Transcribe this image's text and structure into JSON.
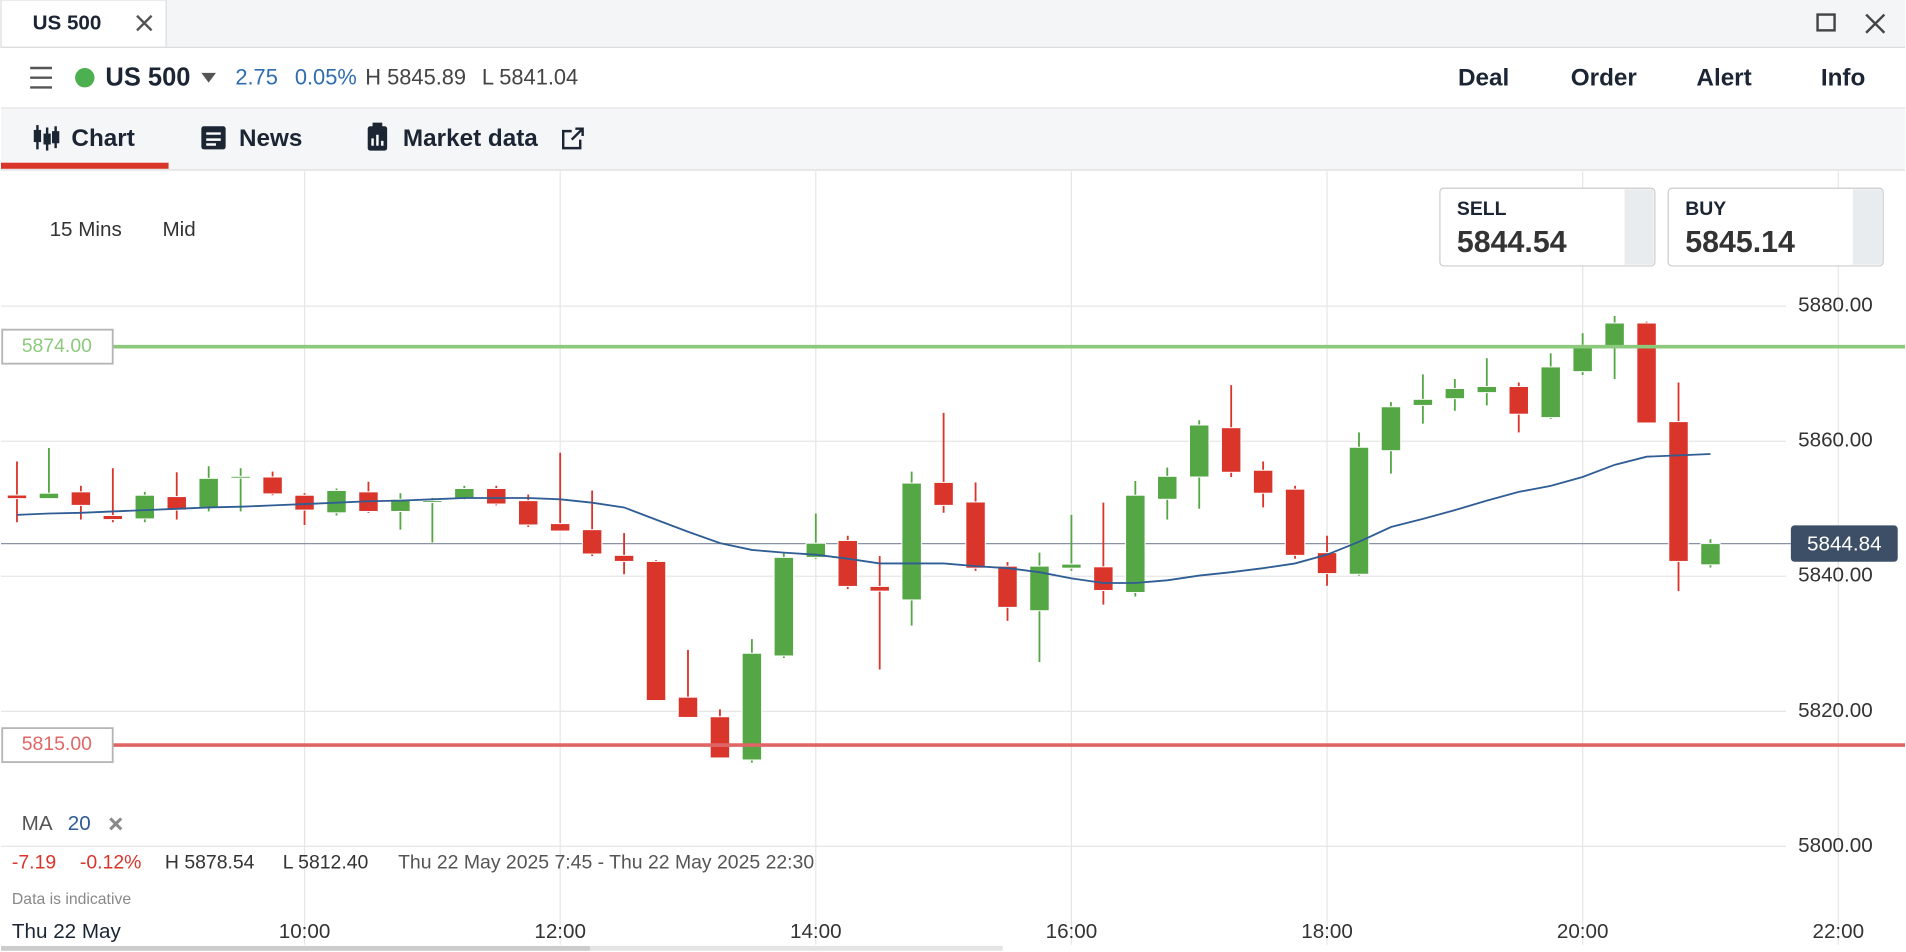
{
  "window": {
    "tab": "US 500"
  },
  "header": {
    "instrument": "US 500",
    "change": "2.75",
    "change_pct": "0.05%",
    "high": "H 5845.89",
    "low": "L 5841.04",
    "actions": [
      "Deal",
      "Order",
      "Alert",
      "Info"
    ]
  },
  "tabs": [
    "Chart",
    "News",
    "Market data"
  ],
  "toolbar": {
    "interval": "15 Mins",
    "price_type": "Mid"
  },
  "quote": {
    "sell_label": "SELL",
    "sell": "5844.54",
    "buy_label": "BUY",
    "buy": "5845.14"
  },
  "footer": {
    "change": "-7.19",
    "change_pct": "-0.12%",
    "high": "H 5878.54",
    "low": "L 5812.40",
    "range": "Thu 22 May 2025 7:45 - Thu 22 May 2025 22:30",
    "note": "Data is indicative"
  },
  "chart_data": {
    "type": "candlestick",
    "date_label": "Thu 22 May",
    "x": [
      7.75,
      8,
      8.25,
      8.5,
      8.75,
      9,
      9.25,
      9.5,
      9.75,
      10,
      10.25,
      10.5,
      10.75,
      11,
      11.25,
      11.5,
      11.75,
      12,
      12.25,
      12.5,
      12.75,
      13,
      13.25,
      13.5,
      13.75,
      14,
      14.25,
      14.5,
      14.75,
      15,
      15.25,
      15.5,
      15.75,
      16,
      16.25,
      16.5,
      16.75,
      17,
      17.25,
      17.5,
      17.75,
      18,
      18.25,
      18.5,
      18.75,
      19,
      19.25,
      19.5,
      19.75,
      20,
      20.25,
      20.5,
      20.75,
      21
    ],
    "open": [
      5852.03,
      5851.5,
      5852.5,
      5849,
      5848.5,
      5851.8,
      5850.2,
      5854.6,
      5854.7,
      5852,
      5849.4,
      5852.5,
      5849.6,
      5851.0,
      5851.6,
      5853,
      5851.2,
      5847.8,
      5846.9,
      5843.1,
      5842.2,
      5822.1,
      5819.2,
      5812.8,
      5828.2,
      5842.8,
      5845.3,
      5838.5,
      5836.5,
      5853.9,
      5851,
      5841.5,
      5834.9,
      5841.2,
      5841.4,
      5837.6,
      5851.4,
      5854.7,
      5862,
      5855.7,
      5852.9,
      5843.5,
      5840.3,
      5858.6,
      5865.3,
      5866.3,
      5867.2,
      5868.1,
      5863.5,
      5870.3,
      5874,
      5877.5,
      5862.9,
      5841.7
    ],
    "high": [
      5857,
      5859,
      5853.4,
      5856,
      5852.5,
      5855.4,
      5856.3,
      5856,
      5855.5,
      5852.3,
      5853,
      5854,
      5852.3,
      5851.6,
      5853.4,
      5853.4,
      5852.1,
      5858.3,
      5852.7,
      5846.4,
      5842.4,
      5829.1,
      5820.3,
      5830.7,
      5843.5,
      5849.3,
      5846,
      5843,
      5855.5,
      5864.2,
      5853.9,
      5842.1,
      5843.5,
      5849.1,
      5850.9,
      5854.1,
      5856.1,
      5863.1,
      5868.3,
      5857,
      5853.4,
      5846,
      5861.3,
      5865.8,
      5869.9,
      5869.2,
      5872.3,
      5868.7,
      5873,
      5876,
      5878.54,
      5877.7,
      5868.7,
      5845.5
    ],
    "low": [
      5848,
      5851.5,
      5848.4,
      5848,
      5848,
      5848.4,
      5849.6,
      5849.6,
      5852,
      5847.6,
      5849,
      5849.4,
      5846.9,
      5845,
      5851.4,
      5850.5,
      5847.3,
      5846.7,
      5843,
      5840.3,
      5821.6,
      5819.1,
      5813.1,
      5812.4,
      5827.9,
      5842.6,
      5838.1,
      5826.2,
      5832.7,
      5849.4,
      5840.8,
      5833.4,
      5827.3,
      5840.8,
      5835.8,
      5837,
      5848.4,
      5850,
      5854.7,
      5850.2,
      5842.6,
      5838.6,
      5840.1,
      5855.2,
      5862.6,
      5864.5,
      5865.3,
      5861.3,
      5863.3,
      5869.8,
      5869.2,
      5862.7,
      5837.8,
      5841.3
    ],
    "close": [
      5851.5,
      5852.3,
      5850.5,
      5848.4,
      5852,
      5849.8,
      5854.5,
      5854.8,
      5852.2,
      5849.8,
      5852.7,
      5849.6,
      5851.4,
      5851.2,
      5853,
      5850.7,
      5847.6,
      5846.7,
      5843.3,
      5842.2,
      5821.6,
      5819.1,
      5813.1,
      5828.6,
      5842.8,
      5844.9,
      5838.5,
      5837.8,
      5853.8,
      5850.5,
      5841.2,
      5835.4,
      5841.5,
      5841.8,
      5837.9,
      5852,
      5854.8,
      5862.4,
      5855.4,
      5852.3,
      5843.1,
      5840.4,
      5859.1,
      5865.1,
      5866.2,
      5867.8,
      5868.1,
      5864,
      5871,
      5874.2,
      5877.5,
      5862.7,
      5842.2,
      5844.84
    ],
    "up_color": "#55a644",
    "down_color": "#d9352b",
    "indicator": {
      "name": "MA",
      "period": 20,
      "color": "#2f5d94",
      "values": [
        5849.1,
        5849.3,
        5849.4,
        5849.6,
        5849.8,
        5850.0,
        5850.2,
        5850.3,
        5850.5,
        5850.7,
        5850.9,
        5851.1,
        5851.2,
        5851.4,
        5851.6,
        5851.6,
        5851.6,
        5851.4,
        5850.9,
        5850.2,
        5848.4,
        5846.6,
        5844.9,
        5843.9,
        5843.5,
        5843.2,
        5842.6,
        5841.9,
        5841.9,
        5841.9,
        5841.5,
        5841.2,
        5840.6,
        5839.7,
        5839.0,
        5839.0,
        5839.4,
        5840.1,
        5840.6,
        5841.2,
        5841.9,
        5843.2,
        5845.1,
        5847.3,
        5848.5,
        5849.8,
        5851.2,
        5852.5,
        5853.4,
        5854.7,
        5856.5,
        5857.7,
        5857.9,
        5858.1
      ]
    },
    "levels": [
      {
        "value": 5874,
        "label": "5874.00",
        "color": "#8cc97c"
      },
      {
        "value": 5815,
        "label": "5815.00",
        "color": "#e06666"
      }
    ],
    "last_price": {
      "value": 5844.84,
      "label": "5844.84"
    },
    "xlim": [
      7.625,
      22.522
    ],
    "xticks": [
      {
        "value": 10,
        "label": "10:00"
      },
      {
        "value": 12,
        "label": "12:00"
      },
      {
        "value": 14,
        "label": "14:00"
      },
      {
        "value": 16,
        "label": "16:00"
      },
      {
        "value": 18,
        "label": "18:00"
      },
      {
        "value": 20,
        "label": "20:00"
      },
      {
        "value": 22,
        "label": "22:00"
      }
    ],
    "ylim": [
      5789.4,
      5899.8
    ],
    "yticks": [
      {
        "value": 5800,
        "label": "5800.00"
      },
      {
        "value": 5820,
        "label": "5820.00"
      },
      {
        "value": 5840,
        "label": "5840.00"
      },
      {
        "value": 5860,
        "label": "5860.00"
      },
      {
        "value": 5880,
        "label": "5880.00"
      }
    ],
    "grid": true
  }
}
